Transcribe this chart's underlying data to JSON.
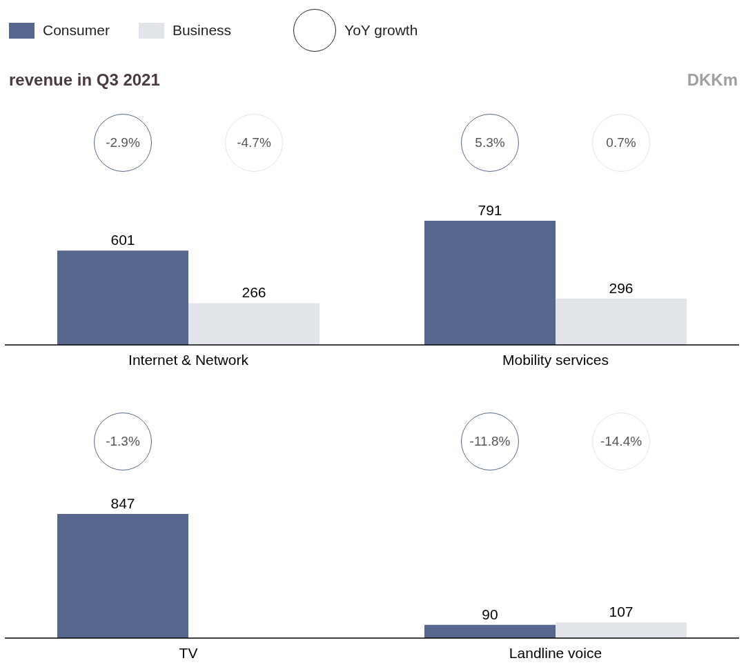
{
  "chart_data": [
    {
      "type": "bar",
      "title": "revenue in Q3 2021",
      "ylabel": "DKKm",
      "legend": "top left",
      "data_labels": true,
      "categories": [
        "Internet & Network",
        "Mobility services"
      ],
      "series": [
        {
          "name": "Consumer",
          "color": "#56668d",
          "values": [
            601,
            791
          ]
        },
        {
          "name": "Business",
          "color": "#e1e5ea",
          "values": [
            266,
            296
          ]
        }
      ],
      "annotations": [
        "YoY growth",
        "-2.9%",
        "-4.7%",
        "5.3%",
        "0.7%"
      ]
    },
    {
      "type": "bar",
      "data_labels": true,
      "categories": [
        "TV",
        "Landline voice"
      ],
      "series": [
        {
          "color": "#56668d",
          "values": [
            847,
            90
          ]
        },
        {
          "color": "#e1e5ea",
          "values": [
            null,
            107
          ]
        }
      ],
      "annotations": [
        "-1.3%",
        "-11.8%",
        "-14.4%"
      ]
    }
  ]
}
